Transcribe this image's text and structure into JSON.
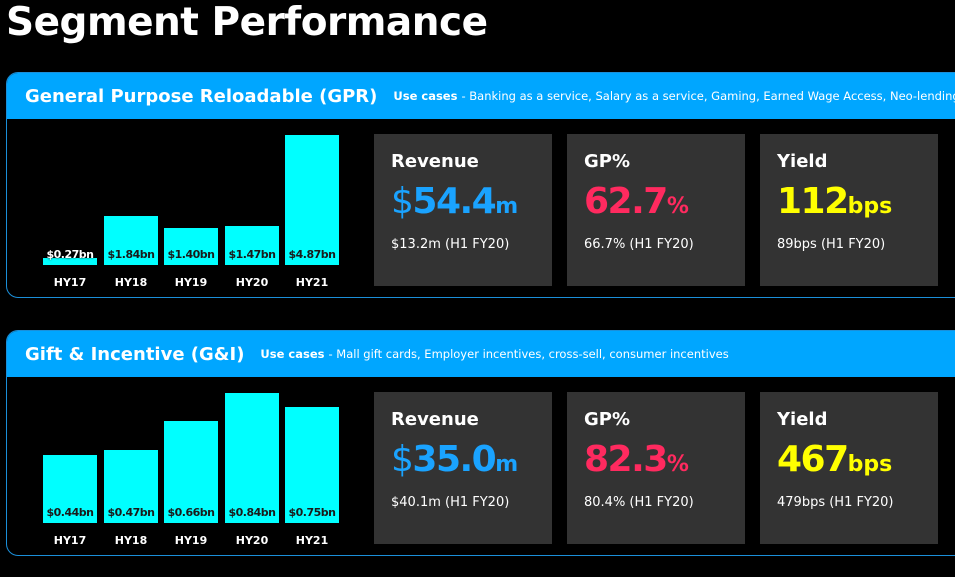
{
  "title": "Segment Performance",
  "colors": {
    "header": "#00a6ff",
    "bar": "#00ffff",
    "revenue": "#1aa3ff",
    "gp": "#ff2a5f",
    "yield": "#ffff00",
    "card": "#333333"
  },
  "segments": [
    {
      "name": "General Purpose Reloadable (GPR)",
      "use_cases_label": "Use cases",
      "use_cases": "- Banking as a service, Salary as a service, Gaming, Earned Wage Access, Neo-lending",
      "cards": [
        {
          "label": "Revenue",
          "prefix": "$",
          "value": "54.4",
          "unit": "m",
          "sub": "$13.2m (H1 FY20)"
        },
        {
          "label": "GP%",
          "prefix": "",
          "value": "62.7",
          "unit": "%",
          "sub": "66.7% (H1 FY20)"
        },
        {
          "label": "Yield",
          "prefix": "",
          "value": "112",
          "unit": "bps",
          "sub": "89bps (H1 FY20)"
        }
      ]
    },
    {
      "name": "Gift & Incentive (G&I)",
      "use_cases_label": "Use cases",
      "use_cases": "- Mall gift cards, Employer incentives, cross-sell, consumer incentives",
      "cards": [
        {
          "label": "Revenue",
          "prefix": "$",
          "value": "35.0",
          "unit": "m",
          "sub": "$40.1m (H1 FY20)"
        },
        {
          "label": "GP%",
          "prefix": "",
          "value": "82.3",
          "unit": "%",
          "sub": "80.4% (H1 FY20)"
        },
        {
          "label": "Yield",
          "prefix": "",
          "value": "467",
          "unit": "bps",
          "sub": "479bps (H1 FY20)"
        }
      ]
    }
  ],
  "chart_data": [
    {
      "type": "bar",
      "categories": [
        "HY17",
        "HY18",
        "HY19",
        "HY20",
        "HY21"
      ],
      "values": [
        0.27,
        1.84,
        1.4,
        1.47,
        4.87
      ],
      "data_labels": [
        "$0.27bn",
        "$1.84bn",
        "$1.40bn",
        "$1.47bn",
        "$4.87bn"
      ],
      "ylim": [
        0,
        4.87
      ],
      "grid": false
    },
    {
      "type": "bar",
      "categories": [
        "HY17",
        "HY18",
        "HY19",
        "HY20",
        "HY21"
      ],
      "values": [
        0.44,
        0.47,
        0.66,
        0.84,
        0.75
      ],
      "data_labels": [
        "$0.44bn",
        "$0.47bn",
        "$0.66bn",
        "$0.84bn",
        "$0.75bn"
      ],
      "ylim": [
        0,
        0.84
      ],
      "grid": false
    }
  ]
}
